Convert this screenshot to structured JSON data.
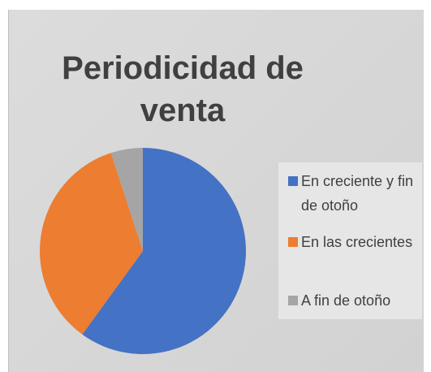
{
  "chart_data": {
    "type": "pie",
    "title": "Periodicidad de venta",
    "categories": [
      "En creciente y fin de otoño",
      "En las crecientes",
      "A fin de otoño"
    ],
    "values": [
      60,
      35,
      5
    ],
    "colors": [
      "#4472c4",
      "#ed7d31",
      "#a5a5a5"
    ],
    "legend": "right"
  }
}
